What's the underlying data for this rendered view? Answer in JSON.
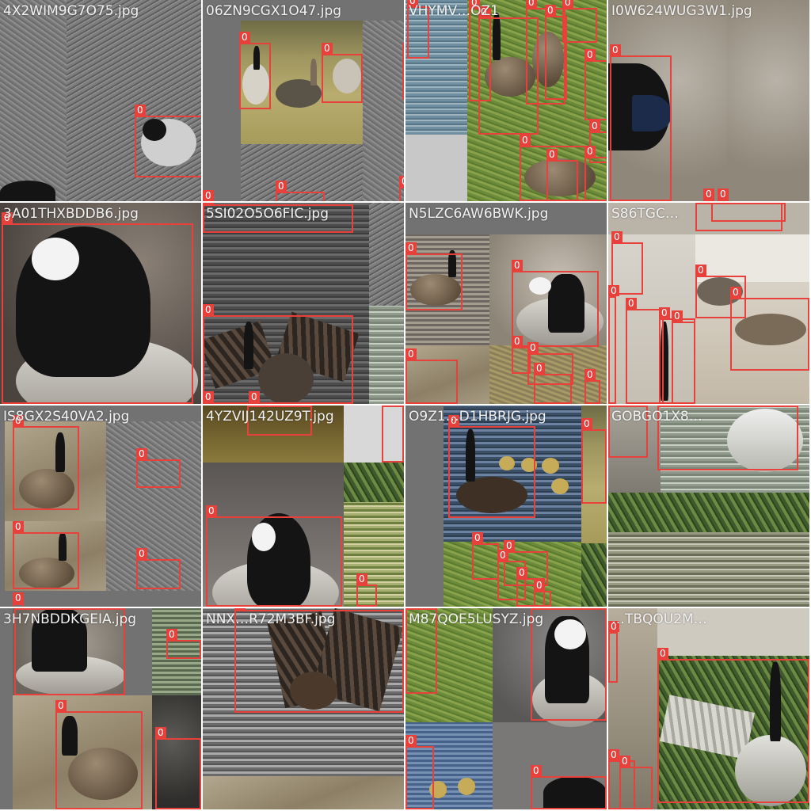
{
  "colors": {
    "box_stroke": "#e8403a",
    "label_text": "#ffffff",
    "filename_text": "#f2f2f2",
    "padding_gray": "#727272"
  },
  "tiles": [
    {
      "filename": "4X2WIM9G7O75.jpg",
      "scene": "gray grass, goose head crop",
      "boxes": [
        {
          "label": "0"
        }
      ]
    },
    {
      "filename": "06ZN9CGX1O47.jpg",
      "scene": "three geese on field",
      "boxes": [
        {
          "label": "0"
        },
        {
          "label": "0"
        },
        {
          "label": "0"
        },
        {
          "label": "0"
        },
        {
          "label": "0"
        },
        {
          "label": "0"
        },
        {
          "label": "0"
        }
      ]
    },
    {
      "filename": "VHYMV…OZ1",
      "scene": "flock on green grass by water",
      "boxes": [
        {
          "label": "0"
        },
        {
          "label": "0"
        },
        {
          "label": "0"
        },
        {
          "label": "0"
        },
        {
          "label": "0"
        },
        {
          "label": "0"
        },
        {
          "label": "0"
        },
        {
          "label": "0"
        },
        {
          "label": "0"
        },
        {
          "label": "0"
        },
        {
          "label": "0"
        }
      ]
    },
    {
      "filename": "I0W624WUG3W1.jpg",
      "scene": "close-up goose beak",
      "boxes": [
        {
          "label": "0"
        },
        {
          "label": "0"
        },
        {
          "label": "0"
        }
      ]
    },
    {
      "filename": "3A01THXBDDB6.jpg",
      "scene": "close-up goose head",
      "boxes": [
        {
          "label": "0"
        }
      ]
    },
    {
      "filename": "5SI02O5O6FIC.jpg",
      "scene": "goose spreading wings on water",
      "boxes": [
        {
          "label": "0"
        },
        {
          "label": "0"
        },
        {
          "label": "0"
        },
        {
          "label": "0"
        }
      ]
    },
    {
      "filename": "N5LZC6AW6BWK.jpg",
      "scene": "goose on water, goose head",
      "boxes": [
        {
          "label": "0"
        },
        {
          "label": "0"
        },
        {
          "label": "0"
        },
        {
          "label": "0"
        },
        {
          "label": "0"
        },
        {
          "label": "0"
        },
        {
          "label": "0"
        }
      ]
    },
    {
      "filename": "S86TGC…",
      "scene": "geese on pale ground",
      "boxes": [
        {
          "label": "0"
        },
        {
          "label": "0"
        },
        {
          "label": "0"
        },
        {
          "label": "0"
        },
        {
          "label": "0"
        },
        {
          "label": "0"
        },
        {
          "label": "0"
        },
        {
          "label": "0"
        },
        {
          "label": "0"
        }
      ]
    },
    {
      "filename": "IS8GX2S40VA2.jpg",
      "scene": "geese on pavement",
      "boxes": [
        {
          "label": "0"
        },
        {
          "label": "0"
        },
        {
          "label": "0"
        },
        {
          "label": "0"
        },
        {
          "label": "0"
        }
      ]
    },
    {
      "filename": "4YZVIJ142UZ9T.jpg",
      "scene": "goose head close-up, pond",
      "boxes": [
        {
          "label": "0"
        },
        {
          "label": "0"
        },
        {
          "label": "0"
        },
        {
          "label": "0"
        }
      ]
    },
    {
      "filename": "O9Z1…D1HBRJG.jpg",
      "scene": "goose with goslings on water",
      "boxes": [
        {
          "label": "0"
        },
        {
          "label": "0"
        },
        {
          "label": "0"
        },
        {
          "label": "0"
        },
        {
          "label": "0"
        },
        {
          "label": "0"
        },
        {
          "label": "0"
        }
      ]
    },
    {
      "filename": "GOBGO1X8…",
      "scene": "goose on water, river bank",
      "boxes": [
        {
          "label": "0"
        },
        {
          "label": "0"
        }
      ]
    },
    {
      "filename": "3H7NBDDKGEIA.jpg",
      "scene": "goose on sandy path",
      "boxes": [
        {
          "label": "0"
        },
        {
          "label": "0"
        },
        {
          "label": "0"
        },
        {
          "label": "0"
        }
      ]
    },
    {
      "filename": "NNX…R72M3BF.jpg",
      "scene": "goose flapping in water",
      "boxes": [
        {
          "label": "0"
        }
      ]
    },
    {
      "filename": "M87QOE5LUSYZ.jpg",
      "scene": "goose heads, goslings",
      "boxes": [
        {
          "label": "0"
        },
        {
          "label": "0"
        },
        {
          "label": "0"
        },
        {
          "label": "0"
        }
      ]
    },
    {
      "filename": "…TBQOU2M…",
      "scene": "goose spreading wings by foliage",
      "boxes": [
        {
          "label": "0"
        },
        {
          "label": "0"
        },
        {
          "label": "0"
        },
        {
          "label": "0"
        }
      ]
    }
  ]
}
